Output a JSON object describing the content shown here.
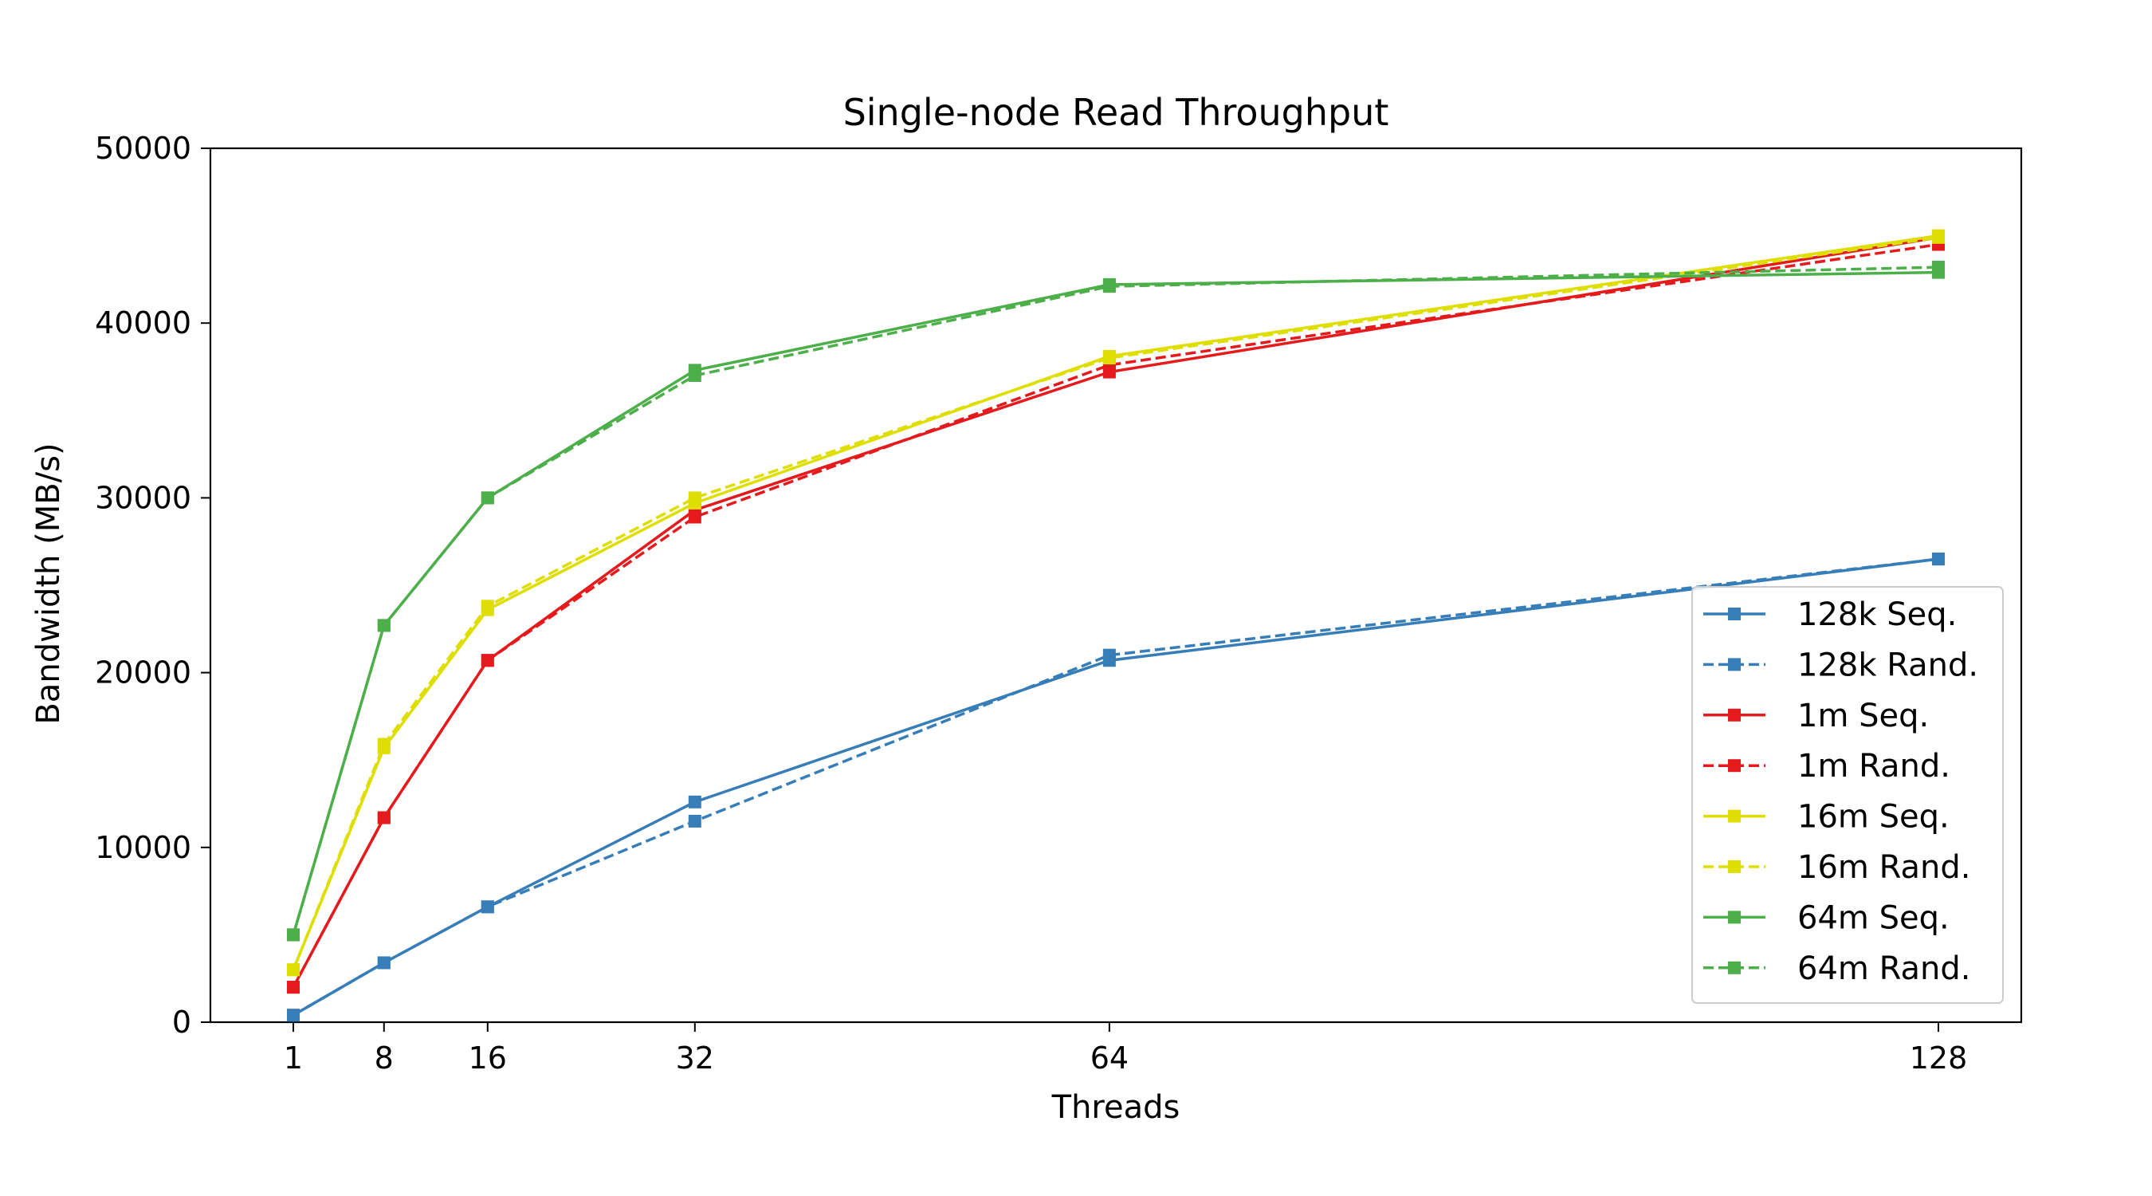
{
  "chart_data": {
    "type": "line",
    "title": "Single-node Read Throughput",
    "xlabel": "Threads",
    "ylabel": "Bandwidth (MB/s)",
    "x": [
      1,
      8,
      16,
      32,
      64,
      128
    ],
    "xlim": [
      -5.4,
      134.4
    ],
    "ylim": [
      0,
      50000
    ],
    "xticks": [
      1,
      8,
      16,
      32,
      64,
      128
    ],
    "yticks": [
      0,
      10000,
      20000,
      30000,
      40000,
      50000
    ],
    "grid": false,
    "legend_position": "lower-right",
    "series": [
      {
        "name": "128k Seq.",
        "color": "#377eb8",
        "linestyle": "solid",
        "marker": "square",
        "values": [
          400,
          3400,
          6600,
          12600,
          20700,
          26500
        ]
      },
      {
        "name": "128k Rand.",
        "color": "#377eb8",
        "linestyle": "dashed",
        "marker": "square",
        "values": [
          400,
          3400,
          6600,
          11500,
          21000,
          26500
        ]
      },
      {
        "name": "1m Seq.",
        "color": "#e41a1c",
        "linestyle": "solid",
        "marker": "square",
        "values": [
          2000,
          11700,
          20700,
          29300,
          37200,
          44900
        ]
      },
      {
        "name": "1m Rand.",
        "color": "#e41a1c",
        "linestyle": "dashed",
        "marker": "square",
        "values": [
          2000,
          11700,
          20700,
          28900,
          37600,
          44500
        ]
      },
      {
        "name": "16m Seq.",
        "color": "#dede00",
        "linestyle": "solid",
        "marker": "square",
        "values": [
          3000,
          15700,
          23600,
          29700,
          38100,
          45000
        ]
      },
      {
        "name": "16m Rand.",
        "color": "#dede00",
        "linestyle": "dashed",
        "marker": "square",
        "values": [
          3000,
          15900,
          23800,
          30000,
          38000,
          44900
        ]
      },
      {
        "name": "64m Seq.",
        "color": "#4daf4a",
        "linestyle": "solid",
        "marker": "square",
        "values": [
          5000,
          22700,
          30000,
          37300,
          42200,
          42900
        ]
      },
      {
        "name": "64m Rand.",
        "color": "#4daf4a",
        "linestyle": "dashed",
        "marker": "square",
        "values": [
          5000,
          22700,
          30000,
          37000,
          42100,
          43200
        ]
      }
    ]
  }
}
